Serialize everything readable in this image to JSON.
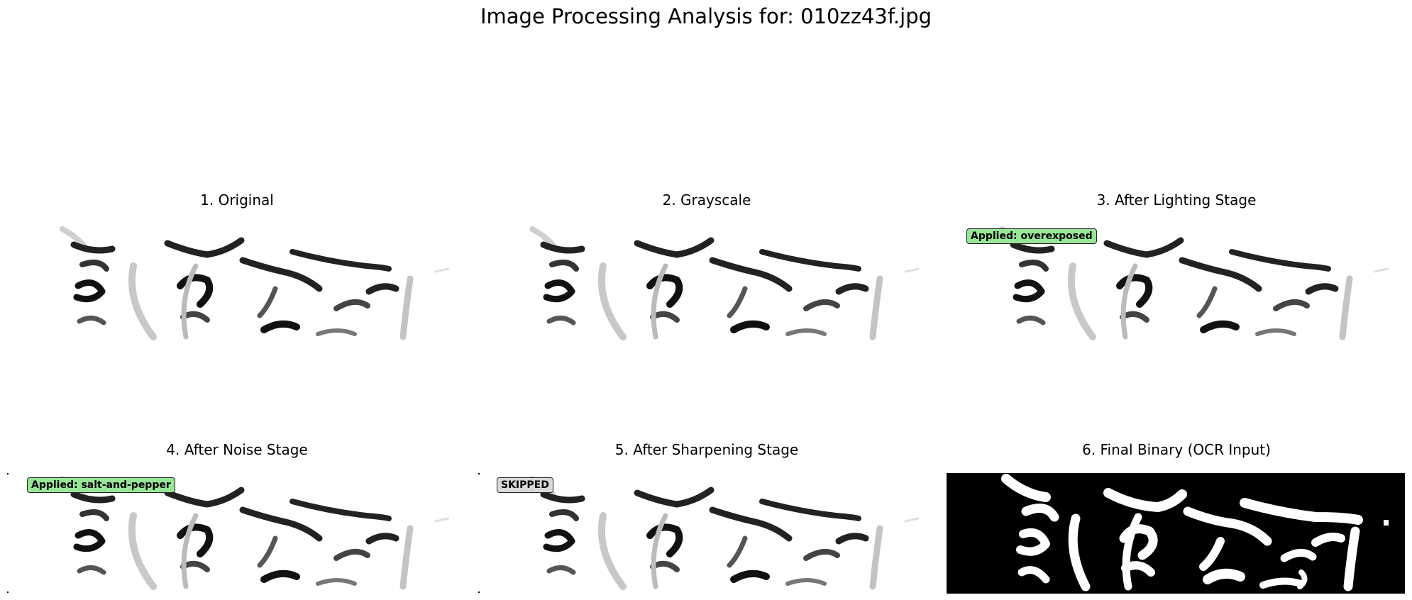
{
  "figure": {
    "title": "Image Processing Analysis for: 010zz43f.jpg"
  },
  "panels": [
    {
      "title": "1. Original",
      "badge": ""
    },
    {
      "title": "2. Grayscale",
      "badge": ""
    },
    {
      "title": "3. After Lighting Stage",
      "badge": "Applied: overexposed",
      "badge_status": "applied"
    },
    {
      "title": "4. After Noise Stage",
      "badge": "Applied: salt-and-pepper",
      "badge_status": "applied"
    },
    {
      "title": "5. After Sharpening Stage",
      "badge": "SKIPPED",
      "badge_status": "skipped"
    },
    {
      "title": "6. Final Binary (OCR Input)",
      "badge": ""
    }
  ],
  "colors": {
    "applied_badge": "#98e698",
    "skipped_badge": "#d9d9d9",
    "binary_background": "#000000",
    "binary_foreground": "#ffffff"
  }
}
